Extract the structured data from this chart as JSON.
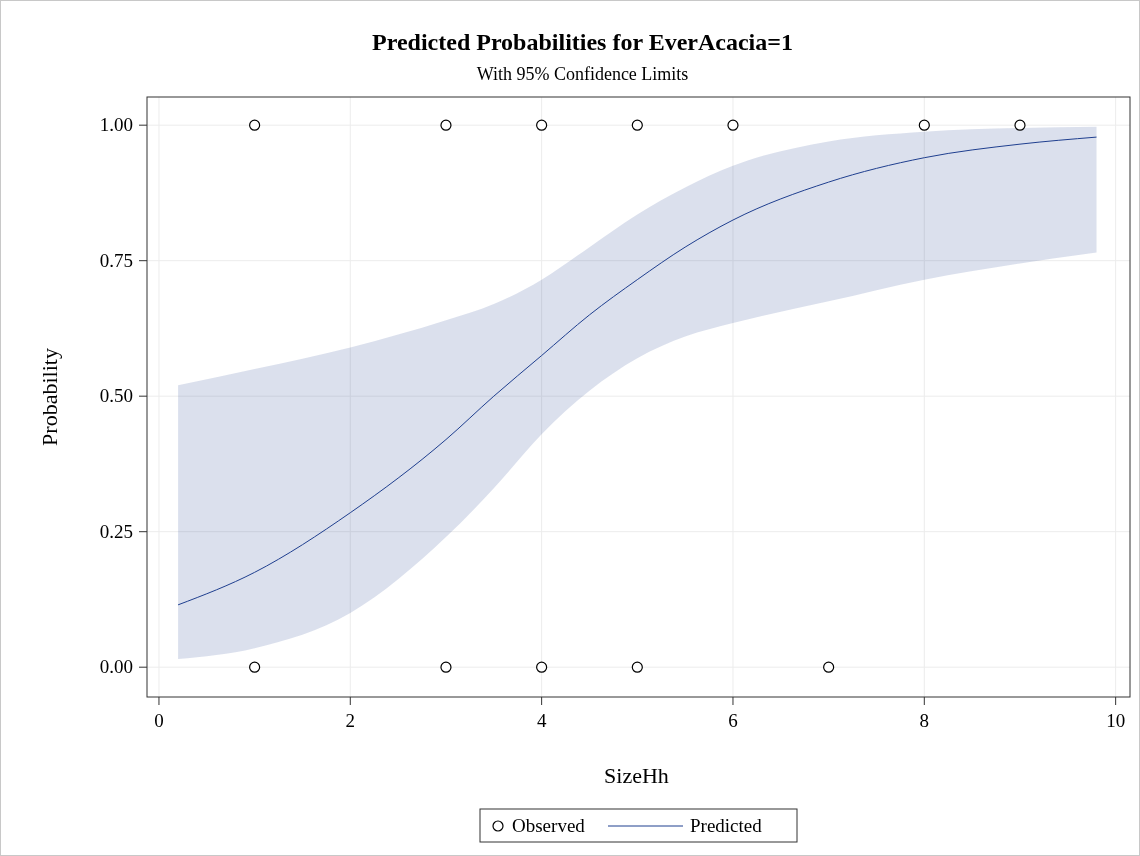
{
  "chart_data": {
    "type": "line",
    "title": "Predicted Probabilities for EverAcacia=1",
    "subtitle": "With 95% Confidence Limits",
    "xlabel": "SizeHh",
    "ylabel": "Probability",
    "xlim": [
      -0.125,
      10.15
    ],
    "xticks": [
      0,
      2,
      4,
      6,
      8,
      10
    ],
    "ylim": [
      -0.055,
      1.052
    ],
    "yticks": [
      {
        "value": 0,
        "label": "0.00"
      },
      {
        "value": 0.25,
        "label": "0.25"
      },
      {
        "value": 0.5,
        "label": "0.50"
      },
      {
        "value": 0.75,
        "label": "0.75"
      },
      {
        "value": 1,
        "label": "1.00"
      }
    ],
    "grid": true,
    "legend": "bottom",
    "series": [
      {
        "name": "Observed",
        "type": "scatter",
        "marker": "circle",
        "color": "#000000",
        "x": [
          1,
          3,
          4,
          5,
          6,
          8,
          9,
          1,
          3,
          4,
          5,
          7
        ],
        "values": [
          1,
          1,
          1,
          1,
          1,
          1,
          1,
          0,
          0,
          0,
          0,
          0
        ]
      },
      {
        "name": "Predicted",
        "color": "#1f3f8f",
        "x": [
          0.2,
          1,
          2,
          3,
          3.5,
          4,
          4.5,
          5,
          5.5,
          6,
          7,
          8,
          9,
          9.8
        ],
        "values": [
          0.115,
          0.175,
          0.285,
          0.42,
          0.5,
          0.575,
          0.65,
          0.715,
          0.775,
          0.825,
          0.895,
          0.94,
          0.965,
          0.978
        ],
        "lower": [
          0.015,
          0.035,
          0.1,
          0.24,
          0.33,
          0.43,
          0.51,
          0.57,
          0.61,
          0.635,
          0.675,
          0.715,
          0.745,
          0.765
        ],
        "upper": [
          0.52,
          0.55,
          0.59,
          0.64,
          0.67,
          0.715,
          0.775,
          0.835,
          0.885,
          0.925,
          0.97,
          0.988,
          0.995,
          0.997
        ]
      }
    ]
  }
}
